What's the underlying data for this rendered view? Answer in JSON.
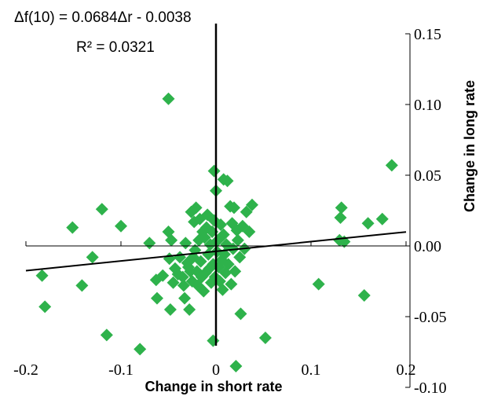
{
  "chart_data": {
    "type": "scatter",
    "xlabel": "Change in short rate",
    "ylabel": "Change in long rate",
    "xlim": [
      -0.2,
      0.2
    ],
    "ylim": [
      -0.1,
      0.15
    ],
    "x_ticks": [
      -0.2,
      -0.1,
      0.0,
      0.1,
      0.2
    ],
    "x_tick_labels": [
      "-0.2",
      "-0.1",
      "0",
      "0.1",
      "0.2"
    ],
    "y_ticks": [
      -0.1,
      -0.05,
      0.0,
      0.05,
      0.1,
      0.15
    ],
    "y_tick_labels": [
      "-0.10",
      "-0.05",
      "0.00",
      "0.05",
      "0.10",
      "0.15"
    ],
    "grid": false,
    "marker_color": "#2eb24b",
    "trendline_color": "#000000",
    "trendline": {
      "slope": 0.0684,
      "intercept": -0.0038
    },
    "annotations": {
      "equation": "Δf(10) = 0.0684Δr - 0.0038",
      "r_squared": "R² = 0.0321"
    },
    "points": [
      [
        -0.05,
        0.104
      ],
      [
        -0.183,
        -0.021
      ],
      [
        -0.18,
        -0.043
      ],
      [
        -0.151,
        0.013
      ],
      [
        -0.141,
        -0.028
      ],
      [
        -0.13,
        -0.008
      ],
      [
        -0.12,
        0.026
      ],
      [
        -0.115,
        -0.063
      ],
      [
        -0.1,
        0.014
      ],
      [
        -0.08,
        -0.073
      ],
      [
        -0.07,
        0.002
      ],
      [
        -0.063,
        -0.024
      ],
      [
        -0.062,
        -0.037
      ],
      [
        -0.056,
        -0.021
      ],
      [
        -0.05,
        0.01
      ],
      [
        -0.049,
        -0.009
      ],
      [
        -0.048,
        -0.045
      ],
      [
        -0.047,
        0.004
      ],
      [
        -0.045,
        -0.026
      ],
      [
        -0.043,
        -0.016
      ],
      [
        -0.04,
        -0.02
      ],
      [
        -0.038,
        -0.008
      ],
      [
        -0.035,
        -0.022
      ],
      [
        -0.034,
        -0.028
      ],
      [
        -0.033,
        -0.037
      ],
      [
        -0.032,
        0.002
      ],
      [
        -0.03,
        -0.012
      ],
      [
        -0.029,
        -0.015
      ],
      [
        -0.028,
        -0.045
      ],
      [
        -0.027,
        -0.018
      ],
      [
        -0.026,
        0.024
      ],
      [
        -0.025,
        -0.025
      ],
      [
        -0.024,
        -0.008
      ],
      [
        -0.023,
        0.017
      ],
      [
        -0.022,
        -0.003
      ],
      [
        -0.021,
        0.027
      ],
      [
        -0.02,
        -0.018
      ],
      [
        -0.019,
        -0.028
      ],
      [
        -0.018,
        0.004
      ],
      [
        -0.017,
        0.019
      ],
      [
        -0.016,
        -0.011
      ],
      [
        -0.015,
        -0.022
      ],
      [
        -0.014,
        0.01
      ],
      [
        -0.013,
        -0.032
      ],
      [
        -0.012,
        0.006
      ],
      [
        -0.011,
        -0.019
      ],
      [
        -0.01,
        0.013
      ],
      [
        -0.009,
        0.022
      ],
      [
        -0.008,
        -0.006
      ],
      [
        -0.007,
        -0.016
      ],
      [
        -0.006,
        0.001
      ],
      [
        -0.005,
        -0.026
      ],
      [
        -0.004,
        0.01
      ],
      [
        -0.003,
        -0.013
      ],
      [
        -0.002,
        0.018
      ],
      [
        -0.001,
        -0.022
      ],
      [
        -0.003,
        -0.067
      ],
      [
        -0.002,
        0.053
      ],
      [
        0.0,
        0.039
      ],
      [
        0.001,
        -0.004
      ],
      [
        0.002,
        0.004
      ],
      [
        0.003,
        -0.015
      ],
      [
        0.004,
        -0.025
      ],
      [
        0.005,
        0.015
      ],
      [
        0.006,
        -0.01
      ],
      [
        0.007,
        -0.031
      ],
      [
        0.008,
        0.008
      ],
      [
        0.009,
        -0.006
      ],
      [
        0.01,
        -0.019
      ],
      [
        0.011,
        0.001
      ],
      [
        0.012,
        0.046
      ],
      [
        0.013,
        -0.013
      ],
      [
        0.015,
        0.028
      ],
      [
        0.016,
        -0.027
      ],
      [
        0.017,
        0.016
      ],
      [
        0.018,
        -0.002
      ],
      [
        0.019,
        0.027
      ],
      [
        0.02,
        -0.018
      ],
      [
        0.021,
        -0.085
      ],
      [
        0.022,
        0.011
      ],
      [
        0.023,
        0.004
      ],
      [
        0.025,
        -0.008
      ],
      [
        0.026,
        -0.048
      ],
      [
        0.028,
        0.014
      ],
      [
        0.03,
        -0.002
      ],
      [
        0.032,
        0.024
      ],
      [
        0.035,
        0.01
      ],
      [
        0.038,
        0.029
      ],
      [
        0.052,
        -0.065
      ],
      [
        0.108,
        -0.027
      ],
      [
        0.13,
        0.004
      ],
      [
        0.131,
        0.02
      ],
      [
        0.132,
        0.027
      ],
      [
        0.156,
        -0.035
      ],
      [
        0.16,
        0.016
      ],
      [
        0.175,
        0.019
      ],
      [
        0.185,
        0.057
      ],
      [
        0.135,
        0.003
      ],
      [
        0.008,
        0.047
      ]
    ]
  }
}
